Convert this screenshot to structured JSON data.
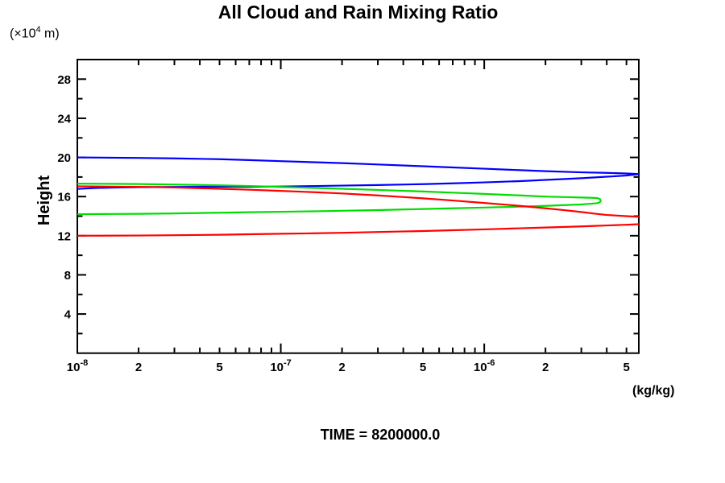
{
  "chart_data": {
    "type": "line",
    "title": "All Cloud and Rain Mixing Ratio",
    "ylabel": "Height",
    "y_unit_label": {
      "prefix": "(×10",
      "exp": "4",
      "suffix": " m)"
    },
    "x_unit_label": "(kg/kg)",
    "footer": "TIME = 8200000.0",
    "x_scale": "log",
    "x_range": [
      1e-08,
      5.75e-06
    ],
    "y_range": [
      0,
      30
    ],
    "grid": false,
    "legend": "none",
    "axis_color": "#000000",
    "x_major_ticks": [
      {
        "base": "10",
        "exp": "-8",
        "value": 1e-08
      },
      {
        "base": "10",
        "exp": "-7",
        "value": 1e-07
      },
      {
        "base": "10",
        "exp": "-6",
        "value": 1e-06
      }
    ],
    "x_minor_multipliers": [
      2,
      3,
      4,
      5,
      6,
      7,
      8,
      9
    ],
    "x_labeled_minor_multipliers": [
      2,
      5
    ],
    "y_major_step": 4,
    "y_minor_step": 2,
    "y_tick_labels": [
      "4",
      "8",
      "12",
      "16",
      "20",
      "24",
      "28"
    ],
    "series": [
      {
        "name": "blue-curve",
        "color": "#0000ff",
        "points": [
          [
            1e-08,
            20.0
          ],
          [
            1.5e-08,
            19.97
          ],
          [
            2e-08,
            19.95
          ],
          [
            3e-08,
            19.9
          ],
          [
            5e-08,
            19.82
          ],
          [
            7e-08,
            19.73
          ],
          [
            1e-07,
            19.62
          ],
          [
            1.5e-07,
            19.5
          ],
          [
            2e-07,
            19.42
          ],
          [
            3e-07,
            19.28
          ],
          [
            5e-07,
            19.1
          ],
          [
            7e-07,
            18.98
          ],
          [
            1e-06,
            18.85
          ],
          [
            1.5e-06,
            18.7
          ],
          [
            2e-06,
            18.6
          ],
          [
            3e-06,
            18.48
          ],
          [
            4e-06,
            18.42
          ],
          [
            5e-06,
            18.36
          ],
          [
            5.75e-06,
            18.3
          ],
          [
            5e-06,
            18.15
          ],
          [
            4e-06,
            18.03
          ],
          [
            3e-06,
            17.88
          ],
          [
            2e-06,
            17.7
          ],
          [
            1.5e-06,
            17.58
          ],
          [
            1e-06,
            17.45
          ],
          [
            7e-07,
            17.35
          ],
          [
            5e-07,
            17.27
          ],
          [
            3e-07,
            17.18
          ],
          [
            2e-07,
            17.12
          ],
          [
            1.5e-07,
            17.08
          ],
          [
            1e-07,
            17.03
          ],
          [
            7e-08,
            17.0
          ],
          [
            5e-08,
            17.0
          ],
          [
            3e-08,
            16.98
          ],
          [
            2e-08,
            16.96
          ],
          [
            1.5e-08,
            16.92
          ],
          [
            1.2e-08,
            16.87
          ],
          [
            1e-08,
            16.78
          ]
        ]
      },
      {
        "name": "green-curve",
        "color": "#00dd00",
        "points": [
          [
            1e-08,
            17.32
          ],
          [
            1.5e-08,
            17.3
          ],
          [
            2e-08,
            17.28
          ],
          [
            3e-08,
            17.23
          ],
          [
            5e-08,
            17.15
          ],
          [
            7e-08,
            17.08
          ],
          [
            1e-07,
            16.98
          ],
          [
            1.5e-07,
            16.88
          ],
          [
            2e-07,
            16.8
          ],
          [
            3e-07,
            16.68
          ],
          [
            5e-07,
            16.52
          ],
          [
            7e-07,
            16.4
          ],
          [
            1e-06,
            16.27
          ],
          [
            1.5e-06,
            16.12
          ],
          [
            2e-06,
            16.0
          ],
          [
            2.5e-06,
            15.95
          ],
          [
            3e-06,
            15.9
          ],
          [
            3.4e-06,
            15.87
          ],
          [
            3.6e-06,
            15.84
          ],
          [
            3.7e-06,
            15.76
          ],
          [
            3.74e-06,
            15.58
          ],
          [
            3.7e-06,
            15.42
          ],
          [
            3.6e-06,
            15.33
          ],
          [
            3.4e-06,
            15.28
          ],
          [
            3e-06,
            15.2
          ],
          [
            2.5e-06,
            15.13
          ],
          [
            2e-06,
            15.05
          ],
          [
            1.5e-06,
            14.97
          ],
          [
            1e-06,
            14.88
          ],
          [
            7e-07,
            14.8
          ],
          [
            5e-07,
            14.73
          ],
          [
            3e-07,
            14.62
          ],
          [
            2e-07,
            14.55
          ],
          [
            1.5e-07,
            14.5
          ],
          [
            1e-07,
            14.45
          ],
          [
            7e-08,
            14.4
          ],
          [
            5e-08,
            14.35
          ],
          [
            3e-08,
            14.28
          ],
          [
            2e-08,
            14.24
          ],
          [
            1.5e-08,
            14.22
          ],
          [
            1e-08,
            14.2
          ]
        ]
      },
      {
        "name": "red-curve",
        "color": "#ff0000",
        "points": [
          [
            1e-08,
            17.05
          ],
          [
            1.5e-08,
            17.02
          ],
          [
            2e-08,
            17.0
          ],
          [
            3e-08,
            16.93
          ],
          [
            5e-08,
            16.8
          ],
          [
            7e-08,
            16.7
          ],
          [
            1e-07,
            16.58
          ],
          [
            1.5e-07,
            16.44
          ],
          [
            2e-07,
            16.32
          ],
          [
            3e-07,
            16.12
          ],
          [
            5e-07,
            15.82
          ],
          [
            7e-07,
            15.6
          ],
          [
            1e-06,
            15.35
          ],
          [
            1.5e-06,
            15.05
          ],
          [
            2e-06,
            14.8
          ],
          [
            2.5e-06,
            14.6
          ],
          [
            3e-06,
            14.42
          ],
          [
            3.5e-06,
            14.25
          ],
          [
            4e-06,
            14.12
          ],
          [
            5e-06,
            14.0
          ],
          [
            5.75e-06,
            13.93
          ],
          [
            7e-06,
            13.78
          ],
          [
            8.5e-06,
            13.52
          ],
          [
            7e-06,
            13.28
          ],
          [
            5.75e-06,
            13.18
          ],
          [
            5e-06,
            13.12
          ],
          [
            4e-06,
            13.05
          ],
          [
            3.5e-06,
            13.0
          ],
          [
            3e-06,
            12.95
          ],
          [
            2.5e-06,
            12.9
          ],
          [
            2e-06,
            12.84
          ],
          [
            1.5e-06,
            12.76
          ],
          [
            1e-06,
            12.65
          ],
          [
            7e-07,
            12.56
          ],
          [
            5e-07,
            12.48
          ],
          [
            3e-07,
            12.38
          ],
          [
            2e-07,
            12.3
          ],
          [
            1.5e-07,
            12.25
          ],
          [
            1e-07,
            12.2
          ],
          [
            7e-08,
            12.15
          ],
          [
            5e-08,
            12.1
          ],
          [
            3e-08,
            12.05
          ],
          [
            2e-08,
            12.02
          ],
          [
            1e-08,
            12.0
          ]
        ]
      }
    ]
  }
}
